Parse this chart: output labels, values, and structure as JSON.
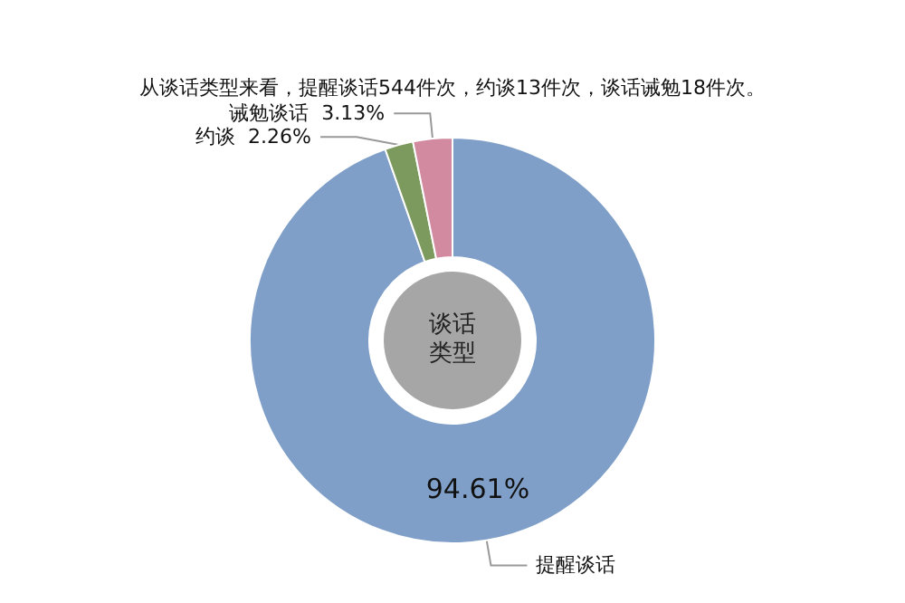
{
  "chart_data": {
    "type": "donut",
    "title": "从谈话类型来看，提醒谈话544件次，约谈13件次，谈话诫勉18件次。",
    "categories": [
      "提醒谈话",
      "约谈",
      "诫勉谈话"
    ],
    "values": [
      94.61,
      2.26,
      3.13
    ],
    "value_labels": [
      "94.61%",
      "2.26%",
      "3.13%"
    ],
    "colors": [
      "#7f9fc8",
      "#7d9a5e",
      "#d18aa0"
    ],
    "annotations": [
      "谈话类型"
    ],
    "legend": false
  }
}
